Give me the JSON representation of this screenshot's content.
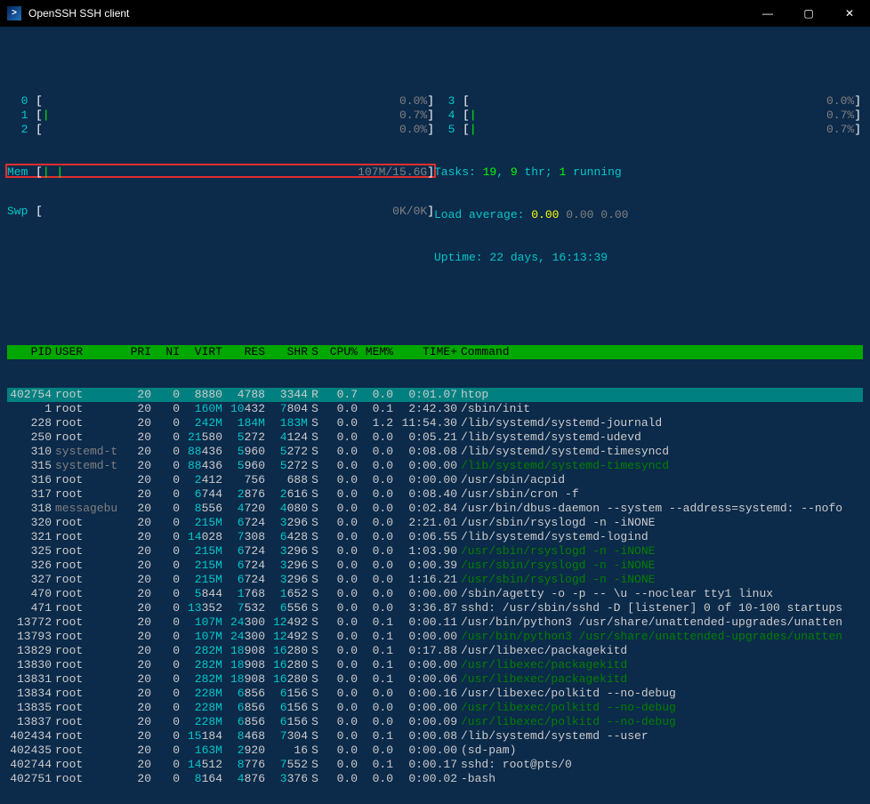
{
  "window": {
    "title": "OpenSSH SSH client"
  },
  "cpu_meters_left": [
    {
      "id": "0",
      "val": "0.0%"
    },
    {
      "id": "1",
      "val": "0.7%"
    },
    {
      "id": "2",
      "val": "0.0%"
    }
  ],
  "cpu_meters_right": [
    {
      "id": "3",
      "val": "0.0%"
    },
    {
      "id": "4",
      "val": "0.7%"
    },
    {
      "id": "5",
      "val": "0.7%"
    }
  ],
  "mem": {
    "label": "Mem",
    "val": "107M/15.6G",
    "bar": "| |"
  },
  "swp": {
    "label": "Swp",
    "val": "0K/0K"
  },
  "tasks": {
    "label": "Tasks: ",
    "total": "19",
    "sep1": ", ",
    "thr": "9",
    "thr_lbl": " thr; ",
    "running": "1",
    "run_lbl": " running"
  },
  "loadavg": {
    "label": "Load average: ",
    "v1": "0.00",
    "v2": "0.00",
    "v3": "0.00"
  },
  "uptime": {
    "label": "Uptime: ",
    "val": "22 days, 16:13:39"
  },
  "headers": {
    "pid": "PID",
    "user": "USER",
    "pri": "PRI",
    "ni": "NI",
    "virt": "VIRT",
    "res": "RES",
    "shr": "SHR",
    "s": "S",
    "cpu": "CPU%",
    "mem": "MEM%",
    "time": "TIME+",
    "cmd": "Command"
  },
  "rows": [
    {
      "pid": "402754",
      "user": "root",
      "pri": "20",
      "ni": "0",
      "virt": "8880",
      "res": "4788",
      "shr": "3344",
      "s": "R",
      "cpu": "0.7",
      "mem": "0.0",
      "time": "0:01.07",
      "cmd": "htop",
      "sel": true
    },
    {
      "pid": "1",
      "user": "root",
      "pri": "20",
      "ni": "0",
      "virt": "160M",
      "res": "10432",
      "shr": "7804",
      "s": "S",
      "cpu": "0.0",
      "mem": "0.1",
      "time": "2:42.30",
      "cmd": "/sbin/init",
      "vh": "160M",
      "rh": "10",
      "sh": "7"
    },
    {
      "pid": "228",
      "user": "root",
      "pri": "20",
      "ni": "0",
      "virt": "242M",
      "res": "184M",
      "shr": "183M",
      "s": "S",
      "cpu": "0.0",
      "mem": "1.2",
      "time": "11:54.30",
      "cmd": "/lib/systemd/systemd-journald",
      "vh": "242M",
      "rh": "184M",
      "sh": "183M"
    },
    {
      "pid": "250",
      "user": "root",
      "pri": "20",
      "ni": "0",
      "virt": "21580",
      "res": "5272",
      "shr": "4124",
      "s": "S",
      "cpu": "0.0",
      "mem": "0.0",
      "time": "0:05.21",
      "cmd": "/lib/systemd/systemd-udevd",
      "vh": "21",
      "rh": "5",
      "sh": "4"
    },
    {
      "pid": "310",
      "user": "systemd-t",
      "pri": "20",
      "ni": "0",
      "virt": "88436",
      "res": "5960",
      "shr": "5272",
      "s": "S",
      "cpu": "0.0",
      "mem": "0.0",
      "time": "0:08.08",
      "cmd": "/lib/systemd/systemd-timesyncd",
      "vh": "88",
      "rh": "5",
      "sh": "5",
      "ug": true
    },
    {
      "pid": "315",
      "user": "systemd-t",
      "pri": "20",
      "ni": "0",
      "virt": "88436",
      "res": "5960",
      "shr": "5272",
      "s": "S",
      "cpu": "0.0",
      "mem": "0.0",
      "time": "0:00.00",
      "cmd": "/lib/systemd/systemd-timesyncd",
      "vh": "88",
      "rh": "5",
      "sh": "5",
      "ug": true,
      "cg": true
    },
    {
      "pid": "316",
      "user": "root",
      "pri": "20",
      "ni": "0",
      "virt": "2412",
      "res": "756",
      "shr": "688",
      "s": "S",
      "cpu": "0.0",
      "mem": "0.0",
      "time": "0:00.00",
      "cmd": "/usr/sbin/acpid",
      "vh": "2"
    },
    {
      "pid": "317",
      "user": "root",
      "pri": "20",
      "ni": "0",
      "virt": "6744",
      "res": "2876",
      "shr": "2616",
      "s": "S",
      "cpu": "0.0",
      "mem": "0.0",
      "time": "0:08.40",
      "cmd": "/usr/sbin/cron -f",
      "vh": "6",
      "rh": "2",
      "sh": "2"
    },
    {
      "pid": "318",
      "user": "messagebu",
      "pri": "20",
      "ni": "0",
      "virt": "8556",
      "res": "4720",
      "shr": "4080",
      "s": "S",
      "cpu": "0.0",
      "mem": "0.0",
      "time": "0:02.84",
      "cmd": "/usr/bin/dbus-daemon --system --address=systemd: --nofo",
      "vh": "8",
      "rh": "4",
      "sh": "4",
      "ug": true
    },
    {
      "pid": "320",
      "user": "root",
      "pri": "20",
      "ni": "0",
      "virt": "215M",
      "res": "6724",
      "shr": "3296",
      "s": "S",
      "cpu": "0.0",
      "mem": "0.0",
      "time": "2:21.01",
      "cmd": "/usr/sbin/rsyslogd -n -iNONE",
      "vh": "215M",
      "rh": "6",
      "sh": "3"
    },
    {
      "pid": "321",
      "user": "root",
      "pri": "20",
      "ni": "0",
      "virt": "14028",
      "res": "7308",
      "shr": "6428",
      "s": "S",
      "cpu": "0.0",
      "mem": "0.0",
      "time": "0:06.55",
      "cmd": "/lib/systemd/systemd-logind",
      "vh": "14",
      "rh": "7",
      "sh": "6"
    },
    {
      "pid": "325",
      "user": "root",
      "pri": "20",
      "ni": "0",
      "virt": "215M",
      "res": "6724",
      "shr": "3296",
      "s": "S",
      "cpu": "0.0",
      "mem": "0.0",
      "time": "1:03.90",
      "cmd": "/usr/sbin/rsyslogd -n -iNONE",
      "vh": "215M",
      "rh": "6",
      "sh": "3",
      "cg": true
    },
    {
      "pid": "326",
      "user": "root",
      "pri": "20",
      "ni": "0",
      "virt": "215M",
      "res": "6724",
      "shr": "3296",
      "s": "S",
      "cpu": "0.0",
      "mem": "0.0",
      "time": "0:00.39",
      "cmd": "/usr/sbin/rsyslogd -n -iNONE",
      "vh": "215M",
      "rh": "6",
      "sh": "3",
      "cg": true
    },
    {
      "pid": "327",
      "user": "root",
      "pri": "20",
      "ni": "0",
      "virt": "215M",
      "res": "6724",
      "shr": "3296",
      "s": "S",
      "cpu": "0.0",
      "mem": "0.0",
      "time": "1:16.21",
      "cmd": "/usr/sbin/rsyslogd -n -iNONE",
      "vh": "215M",
      "rh": "6",
      "sh": "3",
      "cg": true
    },
    {
      "pid": "470",
      "user": "root",
      "pri": "20",
      "ni": "0",
      "virt": "5844",
      "res": "1768",
      "shr": "1652",
      "s": "S",
      "cpu": "0.0",
      "mem": "0.0",
      "time": "0:00.00",
      "cmd": "/sbin/agetty -o -p -- \\u --noclear tty1 linux",
      "vh": "5",
      "rh": "1",
      "sh": "1"
    },
    {
      "pid": "471",
      "user": "root",
      "pri": "20",
      "ni": "0",
      "virt": "13352",
      "res": "7532",
      "shr": "6556",
      "s": "S",
      "cpu": "0.0",
      "mem": "0.0",
      "time": "3:36.87",
      "cmd": "sshd: /usr/sbin/sshd -D [listener] 0 of 10-100 startups",
      "vh": "13",
      "rh": "7",
      "sh": "6"
    },
    {
      "pid": "13772",
      "user": "root",
      "pri": "20",
      "ni": "0",
      "virt": "107M",
      "res": "24300",
      "shr": "12492",
      "s": "S",
      "cpu": "0.0",
      "mem": "0.1",
      "time": "0:00.11",
      "cmd": "/usr/bin/python3 /usr/share/unattended-upgrades/unatten",
      "vh": "107M",
      "rh": "24",
      "sh": "12"
    },
    {
      "pid": "13793",
      "user": "root",
      "pri": "20",
      "ni": "0",
      "virt": "107M",
      "res": "24300",
      "shr": "12492",
      "s": "S",
      "cpu": "0.0",
      "mem": "0.1",
      "time": "0:00.00",
      "cmd": "/usr/bin/python3 /usr/share/unattended-upgrades/unatten",
      "vh": "107M",
      "rh": "24",
      "sh": "12",
      "cg": true
    },
    {
      "pid": "13829",
      "user": "root",
      "pri": "20",
      "ni": "0",
      "virt": "282M",
      "res": "18908",
      "shr": "16280",
      "s": "S",
      "cpu": "0.0",
      "mem": "0.1",
      "time": "0:17.88",
      "cmd": "/usr/libexec/packagekitd",
      "vh": "282M",
      "rh": "18",
      "sh": "16"
    },
    {
      "pid": "13830",
      "user": "root",
      "pri": "20",
      "ni": "0",
      "virt": "282M",
      "res": "18908",
      "shr": "16280",
      "s": "S",
      "cpu": "0.0",
      "mem": "0.1",
      "time": "0:00.00",
      "cmd": "/usr/libexec/packagekitd",
      "vh": "282M",
      "rh": "18",
      "sh": "16",
      "cg": true
    },
    {
      "pid": "13831",
      "user": "root",
      "pri": "20",
      "ni": "0",
      "virt": "282M",
      "res": "18908",
      "shr": "16280",
      "s": "S",
      "cpu": "0.0",
      "mem": "0.1",
      "time": "0:00.06",
      "cmd": "/usr/libexec/packagekitd",
      "vh": "282M",
      "rh": "18",
      "sh": "16",
      "cg": true
    },
    {
      "pid": "13834",
      "user": "root",
      "pri": "20",
      "ni": "0",
      "virt": "228M",
      "res": "6856",
      "shr": "6156",
      "s": "S",
      "cpu": "0.0",
      "mem": "0.0",
      "time": "0:00.16",
      "cmd": "/usr/libexec/polkitd --no-debug",
      "vh": "228M",
      "rh": "6",
      "sh": "6"
    },
    {
      "pid": "13835",
      "user": "root",
      "pri": "20",
      "ni": "0",
      "virt": "228M",
      "res": "6856",
      "shr": "6156",
      "s": "S",
      "cpu": "0.0",
      "mem": "0.0",
      "time": "0:00.00",
      "cmd": "/usr/libexec/polkitd --no-debug",
      "vh": "228M",
      "rh": "6",
      "sh": "6",
      "cg": true
    },
    {
      "pid": "13837",
      "user": "root",
      "pri": "20",
      "ni": "0",
      "virt": "228M",
      "res": "6856",
      "shr": "6156",
      "s": "S",
      "cpu": "0.0",
      "mem": "0.0",
      "time": "0:00.09",
      "cmd": "/usr/libexec/polkitd --no-debug",
      "vh": "228M",
      "rh": "6",
      "sh": "6",
      "cg": true
    },
    {
      "pid": "402434",
      "user": "root",
      "pri": "20",
      "ni": "0",
      "virt": "15184",
      "res": "8468",
      "shr": "7304",
      "s": "S",
      "cpu": "0.0",
      "mem": "0.1",
      "time": "0:00.08",
      "cmd": "/lib/systemd/systemd --user",
      "vh": "15",
      "rh": "8",
      "sh": "7"
    },
    {
      "pid": "402435",
      "user": "root",
      "pri": "20",
      "ni": "0",
      "virt": "163M",
      "res": "2920",
      "shr": "16",
      "s": "S",
      "cpu": "0.0",
      "mem": "0.0",
      "time": "0:00.00",
      "cmd": "(sd-pam)",
      "vh": "163M",
      "rh": "2"
    },
    {
      "pid": "402744",
      "user": "root",
      "pri": "20",
      "ni": "0",
      "virt": "14512",
      "res": "8776",
      "shr": "7552",
      "s": "S",
      "cpu": "0.0",
      "mem": "0.1",
      "time": "0:00.17",
      "cmd": "sshd: root@pts/0",
      "vh": "14",
      "rh": "8",
      "sh": "7"
    },
    {
      "pid": "402751",
      "user": "root",
      "pri": "20",
      "ni": "0",
      "virt": "8164",
      "res": "4876",
      "shr": "3376",
      "s": "S",
      "cpu": "0.0",
      "mem": "0.0",
      "time": "0:00.02",
      "cmd": "-bash",
      "vh": "8",
      "rh": "4",
      "sh": "3"
    }
  ]
}
